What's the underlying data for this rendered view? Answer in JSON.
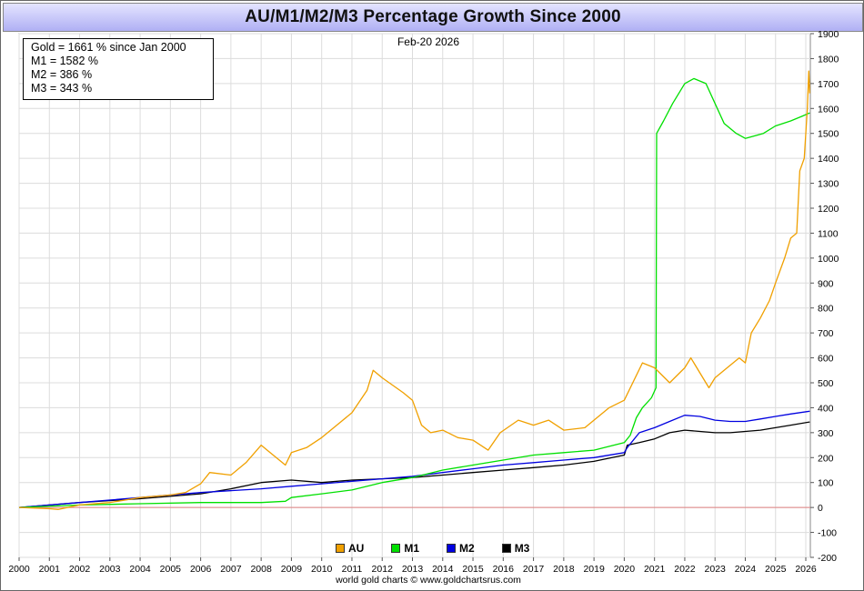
{
  "title": "AU/M1/M2/M3 Percentage Growth Since 2000",
  "date_label": "Feb-20  2026",
  "summary_box": [
    "Gold = 1661 % since Jan 2000",
    "M1 = 1582 %",
    "M2 = 386 %",
    "M3 = 343 %"
  ],
  "credit": "world gold charts © www.goldchartsrus.com",
  "colors": {
    "AU": "#f0a000",
    "M1": "#00e000",
    "M2": "#0000e0",
    "M3": "#000000",
    "zero_line": "#e08080",
    "grid": "#dcdcdc"
  },
  "chart_data": {
    "type": "line",
    "title": "AU/M1/M2/M3 Percentage Growth Since 2000",
    "xlabel": "",
    "ylabel": "",
    "xlim": [
      2000,
      2026.15
    ],
    "ylim": [
      -200,
      1900
    ],
    "x_ticks": [
      "2000",
      "2001",
      "2002",
      "2003",
      "2004",
      "2005",
      "2006",
      "2007",
      "2008",
      "2009",
      "2010",
      "2011",
      "2012",
      "2013",
      "2014",
      "2015",
      "2016",
      "2017",
      "2018",
      "2019",
      "2020",
      "2021",
      "2022",
      "2023",
      "2024",
      "2025",
      "2026"
    ],
    "y_ticks": [
      -200,
      -100,
      0,
      100,
      200,
      300,
      400,
      500,
      600,
      700,
      800,
      900,
      1000,
      1100,
      1200,
      1300,
      1400,
      1500,
      1600,
      1700,
      1800,
      1900
    ],
    "grid": true,
    "legend_position": "bottom-center",
    "series": [
      {
        "name": "AU",
        "x": [
          2000,
          2001,
          2001.3,
          2002,
          2003,
          2004,
          2005,
          2005.5,
          2006,
          2006.3,
          2007,
          2007.5,
          2008,
          2008.2,
          2008.8,
          2009,
          2009.5,
          2010,
          2010.5,
          2011,
          2011.5,
          2011.7,
          2012,
          2012.7,
          2013,
          2013.3,
          2013.6,
          2014,
          2014.5,
          2015,
          2015.5,
          2015.9,
          2016.5,
          2017,
          2017.5,
          2018,
          2018.7,
          2019,
          2019.5,
          2020,
          2020.6,
          2021,
          2021.5,
          2022,
          2022.2,
          2022.8,
          2023,
          2023.3,
          2023.8,
          2024,
          2024.2,
          2024.5,
          2024.8,
          2025,
          2025.3,
          2025.5,
          2025.7,
          2025.8,
          2025.95,
          2026.05,
          2026.1,
          2026.13
        ],
        "values": [
          0,
          -5,
          -8,
          10,
          20,
          40,
          50,
          60,
          95,
          140,
          130,
          180,
          250,
          230,
          170,
          220,
          240,
          280,
          330,
          380,
          470,
          550,
          520,
          460,
          430,
          330,
          300,
          310,
          280,
          270,
          230,
          300,
          350,
          330,
          350,
          310,
          320,
          350,
          400,
          430,
          580,
          560,
          500,
          560,
          600,
          480,
          520,
          550,
          600,
          580,
          700,
          760,
          830,
          900,
          1000,
          1080,
          1100,
          1350,
          1400,
          1600,
          1750,
          1661
        ]
      },
      {
        "name": "M1",
        "x": [
          2000,
          2002,
          2004,
          2006,
          2008,
          2008.8,
          2009,
          2010,
          2011,
          2012,
          2013,
          2014,
          2015,
          2016,
          2017,
          2018,
          2019,
          2020,
          2020.2,
          2020.4,
          2020.6,
          2020.9,
          2021.05,
          2021.07,
          2021.3,
          2021.6,
          2022,
          2022.3,
          2022.7,
          2023,
          2023.3,
          2023.7,
          2024,
          2024.3,
          2024.6,
          2025,
          2025.5,
          2025.9,
          2026.13
        ],
        "values": [
          0,
          10,
          15,
          20,
          20,
          25,
          40,
          55,
          70,
          100,
          120,
          150,
          170,
          190,
          210,
          220,
          230,
          260,
          290,
          360,
          400,
          440,
          480,
          1500,
          1550,
          1620,
          1700,
          1720,
          1700,
          1620,
          1540,
          1500,
          1480,
          1490,
          1500,
          1530,
          1550,
          1570,
          1582
        ]
      },
      {
        "name": "M2",
        "x": [
          2000,
          2002,
          2004,
          2006,
          2008,
          2009,
          2010,
          2011,
          2012,
          2013,
          2014,
          2015,
          2016,
          2017,
          2018,
          2019,
          2020,
          2020.1,
          2020.5,
          2021,
          2021.5,
          2022,
          2022.5,
          2023,
          2023.5,
          2024,
          2024.5,
          2025,
          2025.5,
          2026.13
        ],
        "values": [
          0,
          20,
          40,
          60,
          75,
          85,
          95,
          105,
          115,
          125,
          140,
          155,
          170,
          180,
          190,
          200,
          220,
          240,
          300,
          320,
          345,
          370,
          365,
          350,
          345,
          345,
          355,
          365,
          375,
          386
        ]
      },
      {
        "name": "M3",
        "x": [
          2000,
          2002,
          2004,
          2006,
          2007,
          2008,
          2009,
          2010,
          2011,
          2012,
          2013,
          2014,
          2015,
          2016,
          2017,
          2018,
          2019,
          2020,
          2020.1,
          2020.5,
          2021,
          2021.5,
          2022,
          2022.5,
          2023,
          2023.5,
          2024,
          2024.5,
          2025,
          2025.5,
          2026.13
        ],
        "values": [
          0,
          20,
          35,
          55,
          75,
          100,
          110,
          100,
          110,
          115,
          120,
          130,
          140,
          150,
          160,
          170,
          185,
          210,
          250,
          260,
          275,
          300,
          310,
          305,
          300,
          300,
          305,
          310,
          320,
          330,
          343
        ]
      }
    ]
  }
}
